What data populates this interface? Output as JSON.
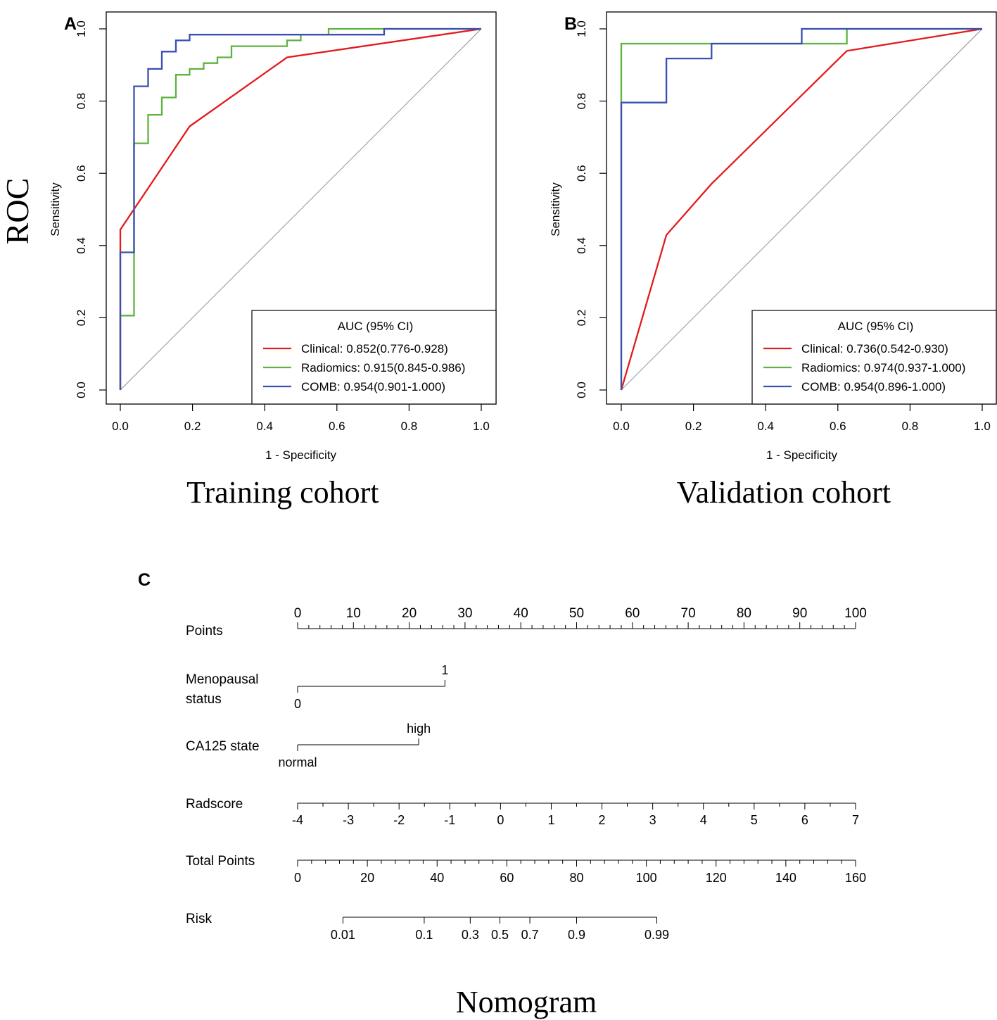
{
  "figure": {
    "side_label": "ROC",
    "colors": {
      "clinical": "#e41a1c",
      "radiomics": "#5db33f",
      "comb": "#3a4fb0",
      "axis": "#000000",
      "diagonal": "#888888"
    }
  },
  "chart_data": [
    {
      "panel": "A",
      "type": "line",
      "caption": "Training cohort",
      "xlabel": "1 - Specificity",
      "ylabel": "Sensitivity",
      "xlim": [
        0,
        1
      ],
      "ylim": [
        0,
        1
      ],
      "xticks": [
        "0.0",
        "0.2",
        "0.4",
        "0.6",
        "0.8",
        "1.0"
      ],
      "yticks": [
        "0.0",
        "0.2",
        "0.4",
        "0.6",
        "0.8",
        "1.0"
      ],
      "diagonal": true,
      "legend": {
        "title": "AUC (95% CI)",
        "position": "bottom-right",
        "entries": [
          "Clinical: 0.852(0.776-0.928)",
          "Radiomics: 0.915(0.845-0.986)",
          "COMB: 0.954(0.901-1.000)"
        ]
      },
      "series": [
        {
          "name": "Clinical",
          "color": "#e41a1c",
          "x": [
            0,
            0,
            0.192,
            0.462,
            1.0
          ],
          "y": [
            0,
            0.444,
            0.73,
            0.921,
            1.0
          ]
        },
        {
          "name": "Radiomics",
          "color": "#5db33f",
          "x": [
            0,
            0,
            0.038,
            0.038,
            0.077,
            0.077,
            0.115,
            0.115,
            0.154,
            0.154,
            0.192,
            0.192,
            0.231,
            0.231,
            0.269,
            0.269,
            0.308,
            0.308,
            0.462,
            0.462,
            0.5,
            0.5,
            0.577,
            0.577,
            1.0
          ],
          "y": [
            0,
            0.206,
            0.206,
            0.683,
            0.683,
            0.762,
            0.762,
            0.81,
            0.81,
            0.873,
            0.873,
            0.889,
            0.889,
            0.905,
            0.905,
            0.921,
            0.921,
            0.952,
            0.952,
            0.968,
            0.968,
            0.984,
            0.984,
            1.0,
            1.0
          ]
        },
        {
          "name": "COMB",
          "color": "#3a4fb0",
          "x": [
            0,
            0,
            0.038,
            0.038,
            0.077,
            0.077,
            0.115,
            0.115,
            0.154,
            0.154,
            0.192,
            0.192,
            0.731,
            0.731,
            1.0
          ],
          "y": [
            0,
            0.381,
            0.381,
            0.841,
            0.841,
            0.889,
            0.889,
            0.937,
            0.937,
            0.968,
            0.968,
            0.984,
            0.984,
            1.0,
            1.0
          ]
        }
      ]
    },
    {
      "panel": "B",
      "type": "line",
      "caption": "Validation cohort",
      "xlabel": "1 - Specificity",
      "ylabel": "Sensitivity",
      "xlim": [
        0,
        1
      ],
      "ylim": [
        0,
        1
      ],
      "xticks": [
        "0.0",
        "0.2",
        "0.4",
        "0.6",
        "0.8",
        "1.0"
      ],
      "yticks": [
        "0.0",
        "0.2",
        "0.4",
        "0.6",
        "0.8",
        "1.0"
      ],
      "diagonal": true,
      "legend": {
        "title": "AUC (95% CI)",
        "position": "bottom-right",
        "entries": [
          "Clinical: 0.736(0.542-0.930)",
          "Radiomics: 0.974(0.937-1.000)",
          "COMB: 0.954(0.896-1.000)"
        ]
      },
      "series": [
        {
          "name": "Clinical",
          "color": "#e41a1c",
          "x": [
            0,
            0.125,
            0.25,
            0.625,
            1.0
          ],
          "y": [
            0,
            0.429,
            0.571,
            0.939,
            1.0
          ]
        },
        {
          "name": "Radiomics",
          "color": "#5db33f",
          "x": [
            0,
            0,
            0.625,
            0.625,
            1.0
          ],
          "y": [
            0,
            0.959,
            0.959,
            1.0,
            1.0
          ]
        },
        {
          "name": "COMB",
          "color": "#3a4fb0",
          "x": [
            0,
            0,
            0.125,
            0.125,
            0.25,
            0.25,
            0.5,
            0.5,
            1.0
          ],
          "y": [
            0,
            0.796,
            0.796,
            0.918,
            0.918,
            0.959,
            0.959,
            1.0,
            1.0
          ]
        }
      ]
    },
    {
      "panel": "C",
      "type": "nomogram",
      "caption": "Nomogram",
      "point_range": [
        0,
        100
      ],
      "rows": [
        {
          "label": "Points",
          "kind": "axis",
          "min": 0,
          "max": 100,
          "minor": 2,
          "ticks": [
            0,
            10,
            20,
            30,
            40,
            50,
            60,
            70,
            80,
            90,
            100
          ],
          "tick_labels": [
            "0",
            "10",
            "20",
            "30",
            "40",
            "50",
            "60",
            "70",
            "80",
            "90",
            "100"
          ]
        },
        {
          "label_lines": [
            "Menopausal",
            "status"
          ],
          "kind": "category",
          "levels": [
            "0",
            "1"
          ],
          "points": [
            0,
            26.4
          ]
        },
        {
          "label": "CA125 state",
          "kind": "category",
          "levels": [
            "normal",
            "high"
          ],
          "points": [
            0,
            21.7
          ]
        },
        {
          "label": "Radscore",
          "kind": "continuous",
          "values": [
            -4,
            -3,
            -2,
            -1,
            0,
            1,
            2,
            3,
            4,
            5,
            6,
            7
          ],
          "tick_labels": [
            "-4",
            "-3",
            "-2",
            "-1",
            "0",
            "1",
            "2",
            "3",
            "4",
            "5",
            "6",
            "7"
          ],
          "points_at_min": 0,
          "points_at_max": 100
        },
        {
          "label": "Total Points",
          "kind": "axis",
          "min": 0,
          "max": 160,
          "minor": 4,
          "ticks": [
            0,
            20,
            40,
            60,
            80,
            100,
            120,
            140,
            160
          ],
          "tick_labels": [
            "0",
            "20",
            "40",
            "60",
            "80",
            "100",
            "120",
            "140",
            "160"
          ]
        },
        {
          "label": "Risk",
          "kind": "risk",
          "total_points_at": [
            13,
            36.3,
            49.5,
            58,
            66.6,
            80,
            103
          ],
          "tick_labels": [
            "0.01",
            "0.1",
            "0.3",
            "0.5",
            "0.7",
            "0.9",
            "0.99"
          ]
        }
      ]
    }
  ]
}
